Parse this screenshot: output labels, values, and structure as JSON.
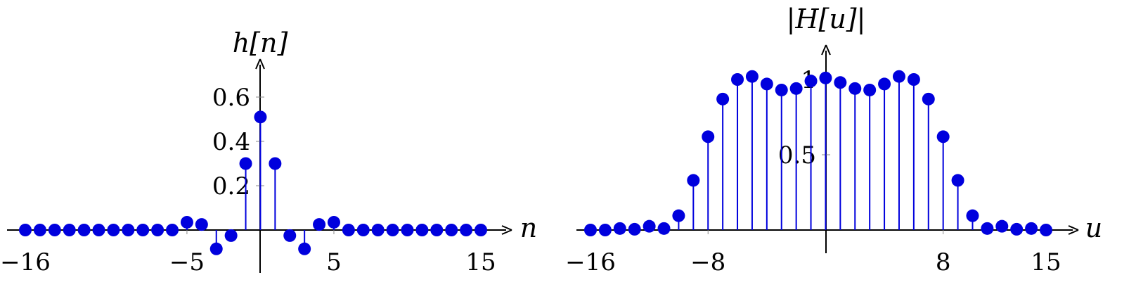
{
  "chart_data": [
    {
      "type": "stem",
      "ylabel": "h[n]",
      "xlabel": "n",
      "xlim": [
        -16,
        15
      ],
      "ylim": [
        -0.12,
        0.68
      ],
      "x_ticks": [
        {
          "value": -16,
          "label": "−16"
        },
        {
          "value": -5,
          "label": "−5"
        },
        {
          "value": 5,
          "label": "5"
        },
        {
          "value": 15,
          "label": "15"
        }
      ],
      "y_ticks": [
        {
          "value": 0.2,
          "label": "0.2"
        },
        {
          "value": 0.4,
          "label": "0.4"
        },
        {
          "value": 0.6,
          "label": "0.6"
        }
      ],
      "color": "#0000dd",
      "x": [
        -16,
        -15,
        -14,
        -13,
        -12,
        -11,
        -10,
        -9,
        -8,
        -7,
        -6,
        -5,
        -4,
        -3,
        -2,
        -1,
        0,
        1,
        2,
        3,
        4,
        5,
        6,
        7,
        8,
        9,
        10,
        11,
        12,
        13,
        14,
        15
      ],
      "values": [
        0,
        0,
        0,
        0,
        0,
        0,
        0,
        0,
        0,
        0,
        0,
        0.035,
        0.025,
        -0.085,
        -0.025,
        0.3,
        0.51,
        0.3,
        -0.025,
        -0.085,
        0.025,
        0.035,
        0,
        0,
        0,
        0,
        0,
        0,
        0,
        0,
        0,
        0
      ]
    },
    {
      "type": "stem",
      "ylabel": "|H[u]|",
      "xlabel": "u",
      "xlim": [
        -16,
        15
      ],
      "ylim": [
        0,
        1.18
      ],
      "x_ticks": [
        {
          "value": -16,
          "label": "−16"
        },
        {
          "value": -8,
          "label": "−8"
        },
        {
          "value": 8,
          "label": "8"
        },
        {
          "value": 15,
          "label": "15"
        }
      ],
      "y_ticks": [
        {
          "value": 0.5,
          "label": "0.5"
        },
        {
          "value": 1,
          "label": "1"
        }
      ],
      "color": "#0000dd",
      "x": [
        -16,
        -15,
        -14,
        -13,
        -12,
        -11,
        -10,
        -9,
        -8,
        -7,
        -6,
        -5,
        -4,
        -3,
        -2,
        -1,
        0,
        1,
        2,
        3,
        4,
        5,
        6,
        7,
        8,
        9,
        10,
        11,
        12,
        13,
        14,
        15
      ],
      "values": [
        0,
        0,
        0.01,
        0.005,
        0.025,
        0.01,
        0.095,
        0.33,
        0.62,
        0.87,
        1.0,
        1.02,
        0.97,
        0.93,
        0.94,
        0.99,
        1.01,
        0.98,
        0.94,
        0.93,
        0.97,
        1.02,
        1.0,
        0.87,
        0.62,
        0.33,
        0.095,
        0.01,
        0.025,
        0.005,
        0.01,
        0
      ]
    }
  ]
}
